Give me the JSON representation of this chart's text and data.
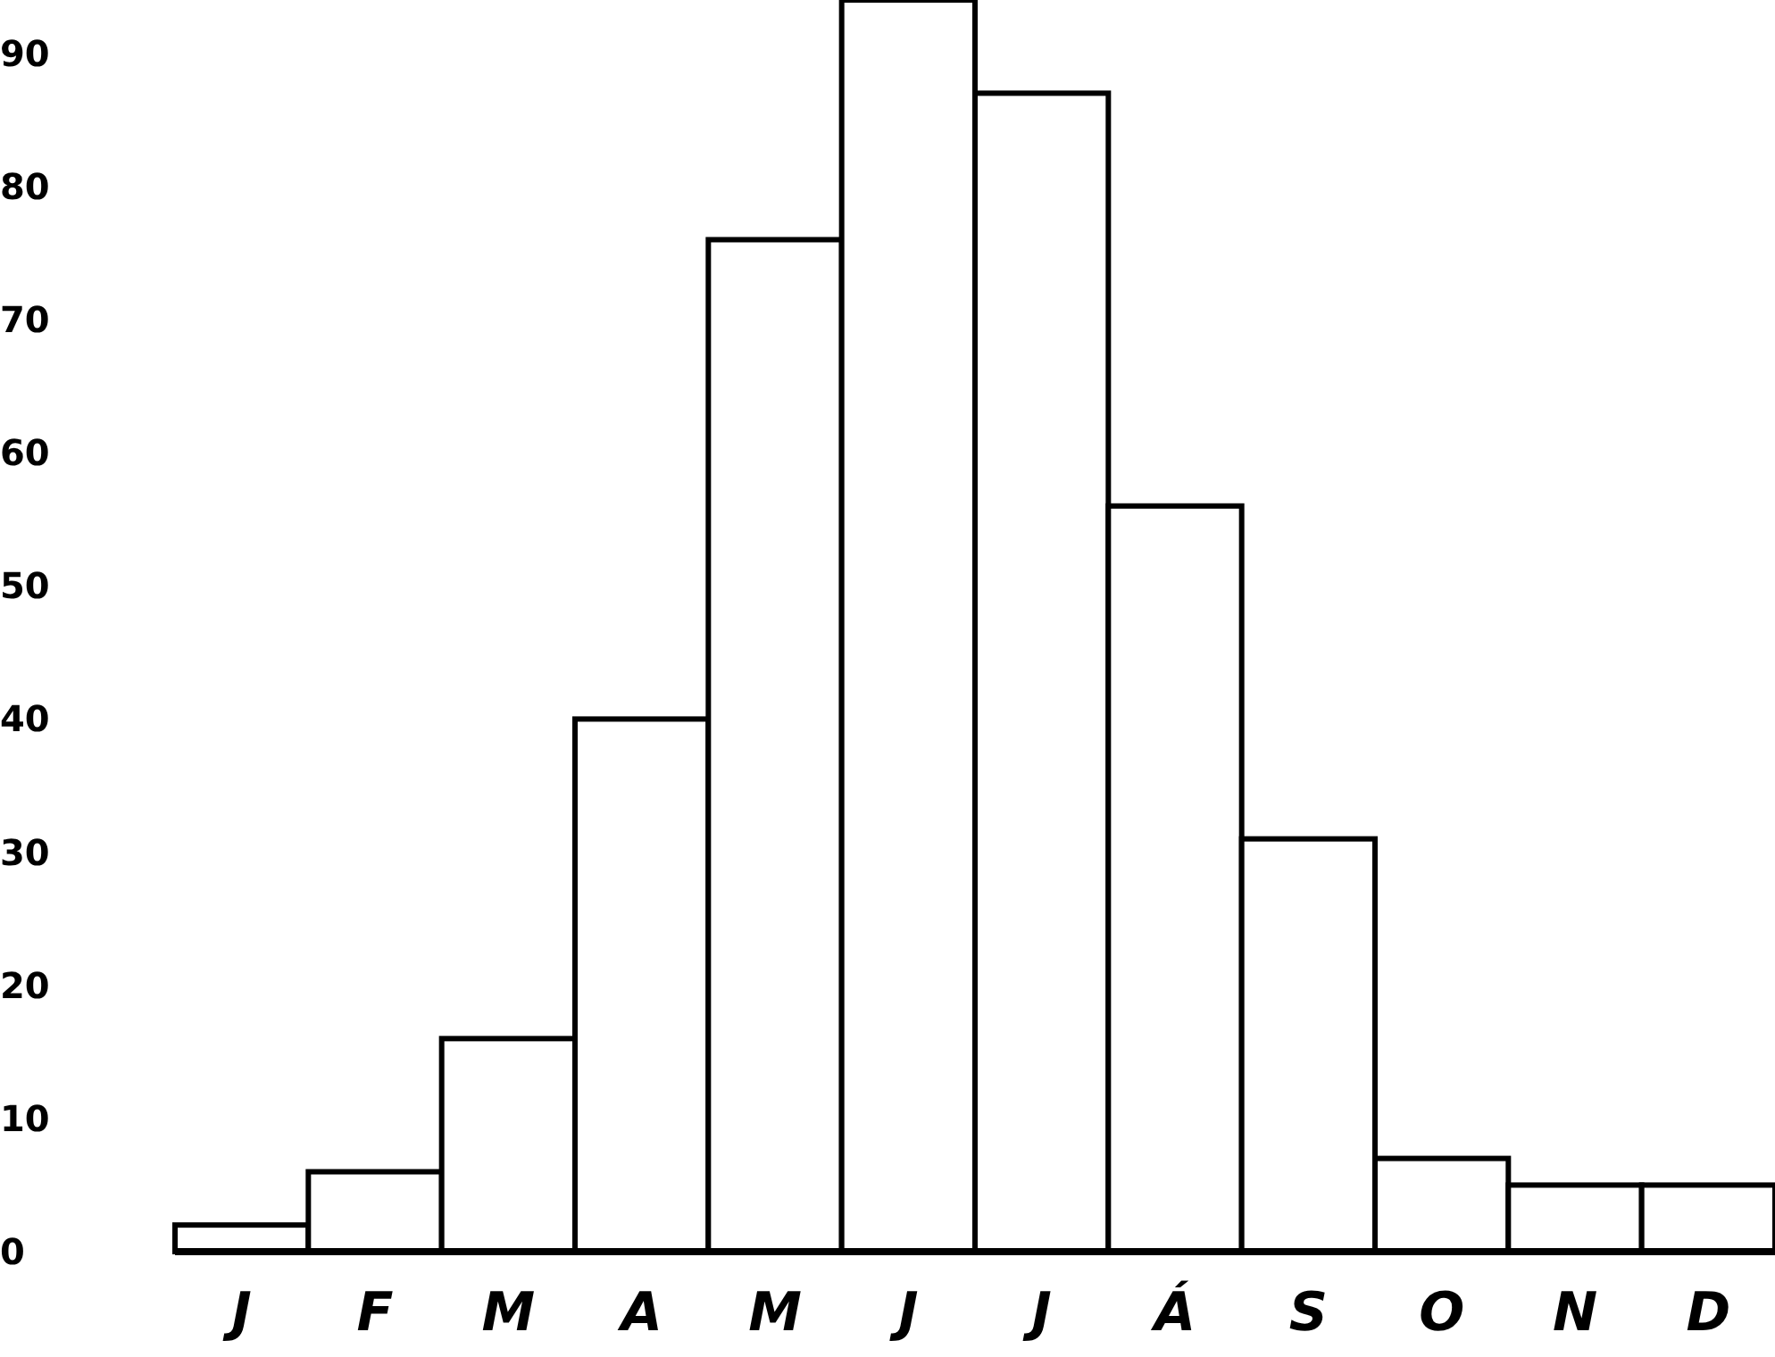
{
  "chart_data": {
    "type": "bar",
    "categories": [
      "J",
      "F",
      "M",
      "A",
      "M",
      "J",
      "J",
      "Á",
      "S",
      "O",
      "N",
      "D"
    ],
    "values": [
      2,
      6,
      16,
      40,
      76,
      94,
      87,
      56,
      31,
      7,
      5,
      5
    ],
    "color": "#ffffff",
    "ylim": [
      0,
      94
    ],
    "yticks": [
      0,
      10,
      20,
      30,
      40,
      50,
      60,
      70,
      80,
      90
    ],
    "grid": false
  }
}
